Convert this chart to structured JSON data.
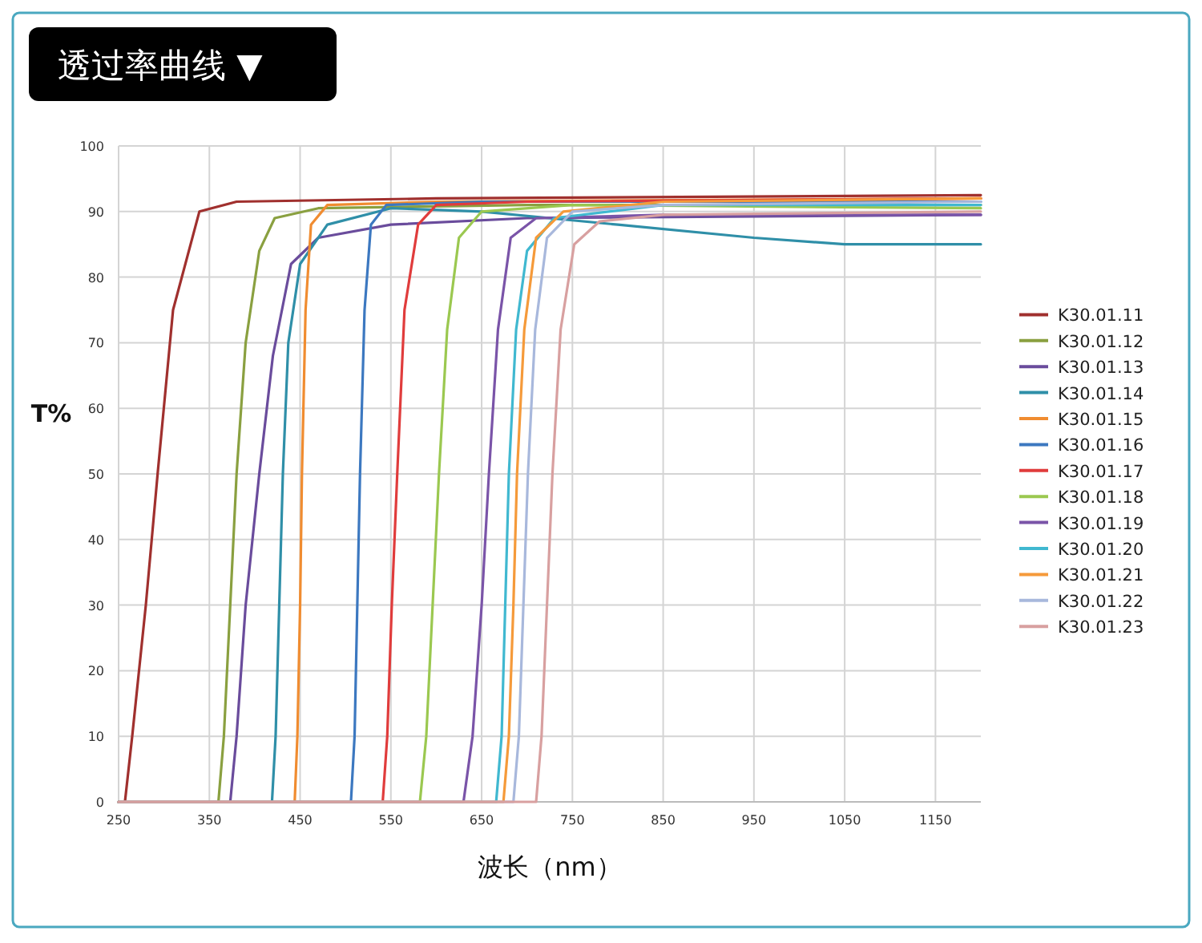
{
  "chart_data": {
    "type": "line",
    "title": "透过率曲线 ▼",
    "xlabel": "波长（nm）",
    "ylabel": "T%",
    "xlim": [
      250,
      1200
    ],
    "ylim": [
      0,
      100
    ],
    "xticks": [
      250,
      350,
      450,
      550,
      650,
      750,
      850,
      950,
      1050,
      1150
    ],
    "yticks": [
      0,
      10,
      20,
      30,
      40,
      50,
      60,
      70,
      80,
      90,
      100
    ],
    "grid": true,
    "legend": "right",
    "line_style": "solid",
    "series": [
      {
        "name": "K30.01.11",
        "color": "#a0302e",
        "x": [
          250,
          257,
          265,
          280,
          293,
          310,
          339,
          380,
          600,
          1200
        ],
        "values": [
          0,
          0,
          10,
          30,
          50,
          75,
          90,
          91.5,
          92,
          92.5
        ]
      },
      {
        "name": "K30.01.12",
        "color": "#8aa040",
        "x": [
          250,
          360,
          366,
          373,
          380,
          390,
          405,
          422,
          470,
          700,
          1200
        ],
        "values": [
          0,
          0,
          10,
          30,
          50,
          70,
          84,
          89,
          90.5,
          91,
          91
        ]
      },
      {
        "name": "K30.01.13",
        "color": "#6a4c9c",
        "x": [
          250,
          373,
          380,
          390,
          405,
          420,
          440,
          470,
          550,
          700,
          1200
        ],
        "values": [
          0,
          0,
          10,
          30,
          50,
          68,
          82,
          86,
          88,
          89,
          89.5
        ]
      },
      {
        "name": "K30.01.14",
        "color": "#2f8fa8",
        "x": [
          250,
          419,
          423,
          427,
          431,
          437,
          450,
          480,
          550,
          650,
          800,
          950,
          1050,
          1200
        ],
        "values": [
          0,
          0,
          10,
          30,
          50,
          70,
          82,
          88,
          90.5,
          90,
          88,
          86,
          85,
          85
        ]
      },
      {
        "name": "K30.01.15",
        "color": "#f08c30",
        "x": [
          250,
          444,
          447,
          450,
          452,
          456,
          462,
          480,
          600,
          1200
        ],
        "values": [
          0,
          0,
          10,
          30,
          50,
          75,
          88,
          91,
          91.5,
          92
        ]
      },
      {
        "name": "K30.01.16",
        "color": "#3c78c0",
        "x": [
          250,
          506,
          510,
          513,
          516,
          521,
          528,
          545,
          650,
          1200
        ],
        "values": [
          0,
          0,
          10,
          30,
          50,
          75,
          88,
          91,
          91.5,
          91.5
        ]
      },
      {
        "name": "K30.01.17",
        "color": "#e03c3c",
        "x": [
          250,
          541,
          546,
          551,
          557,
          565,
          580,
          600,
          700,
          1200
        ],
        "values": [
          0,
          0,
          10,
          30,
          50,
          75,
          88,
          91,
          91.5,
          92
        ]
      },
      {
        "name": "K30.01.18",
        "color": "#9bc850",
        "x": [
          250,
          582,
          589,
          596,
          603,
          612,
          625,
          650,
          750,
          1200
        ],
        "values": [
          0,
          0,
          10,
          30,
          50,
          72,
          86,
          90,
          91,
          90.5
        ]
      },
      {
        "name": "K30.01.19",
        "color": "#7a54a8",
        "x": [
          250,
          630,
          640,
          650,
          658,
          668,
          682,
          710,
          850,
          1200
        ],
        "values": [
          0,
          0,
          10,
          30,
          50,
          72,
          86,
          89,
          89.5,
          89.5
        ]
      },
      {
        "name": "K30.01.20",
        "color": "#40b8d0",
        "x": [
          250,
          666,
          672,
          676,
          680,
          688,
          700,
          730,
          850,
          1200
        ],
        "values": [
          0,
          0,
          10,
          30,
          50,
          72,
          84,
          89,
          91,
          91
        ]
      },
      {
        "name": "K30.01.21",
        "color": "#f59a3a",
        "x": [
          250,
          674,
          680,
          685,
          689,
          697,
          710,
          740,
          850,
          1200
        ],
        "values": [
          0,
          0,
          10,
          30,
          50,
          72,
          86,
          90,
          91.5,
          92
        ]
      },
      {
        "name": "K30.01.22",
        "color": "#a8b8dc",
        "x": [
          250,
          685,
          691,
          696,
          701,
          709,
          722,
          750,
          850,
          1200
        ],
        "values": [
          0,
          0,
          10,
          30,
          50,
          72,
          86,
          90,
          91,
          91.5
        ]
      },
      {
        "name": "K30.01.23",
        "color": "#d8a0a0",
        "x": [
          250,
          710,
          716,
          722,
          728,
          737,
          752,
          780,
          850,
          1200
        ],
        "values": [
          0,
          0,
          10,
          30,
          50,
          72,
          85,
          88.5,
          89.5,
          90
        ]
      }
    ]
  }
}
